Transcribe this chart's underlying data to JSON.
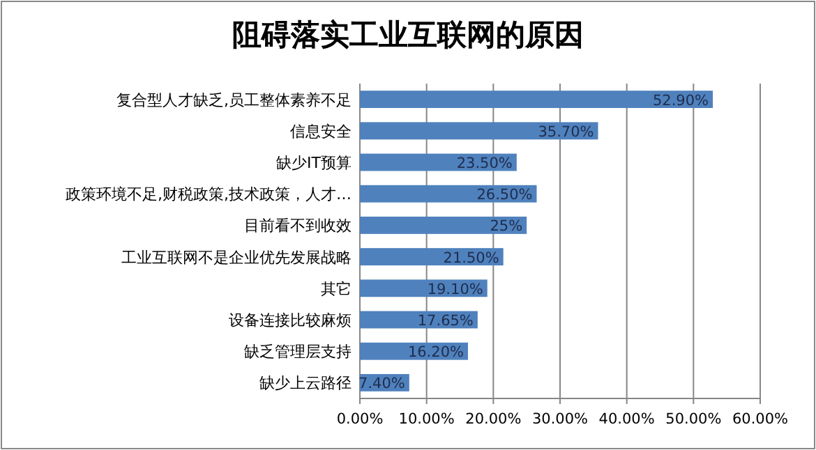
{
  "chart_data": {
    "type": "bar",
    "orientation": "horizontal",
    "title": "阻碍落实工业互联网的原因",
    "categories": [
      "复合型人才缺乏,员工整体素养不足",
      "信息安全",
      "缺少IT预算",
      "政策环境不足,财税政策,技术政策，人才…",
      "目前看不到收效",
      "工业互联网不是企业优先发展战略",
      "其它",
      "设备连接比较麻烦",
      "缺乏管理层支持",
      "缺少上云路径"
    ],
    "values": [
      52.9,
      35.7,
      23.5,
      26.5,
      25,
      21.5,
      19.1,
      17.65,
      16.2,
      7.4
    ],
    "value_labels": [
      "52.90%",
      "35.70%",
      "23.50%",
      "26.50%",
      "25%",
      "21.50%",
      "19.10%",
      "17.65%",
      "16.20%",
      "7.40%"
    ],
    "color": "#4f81bd",
    "xlim": [
      0,
      60
    ],
    "xticks": [
      {
        "value": 0,
        "label": "0.00%"
      },
      {
        "value": 10,
        "label": "10.00%"
      },
      {
        "value": 20,
        "label": "20.00%"
      },
      {
        "value": 30,
        "label": "30.00%"
      },
      {
        "value": 40,
        "label": "40.00%"
      },
      {
        "value": 50,
        "label": "50.00%"
      },
      {
        "value": 60,
        "label": "60.00%"
      }
    ],
    "grid": "x"
  }
}
